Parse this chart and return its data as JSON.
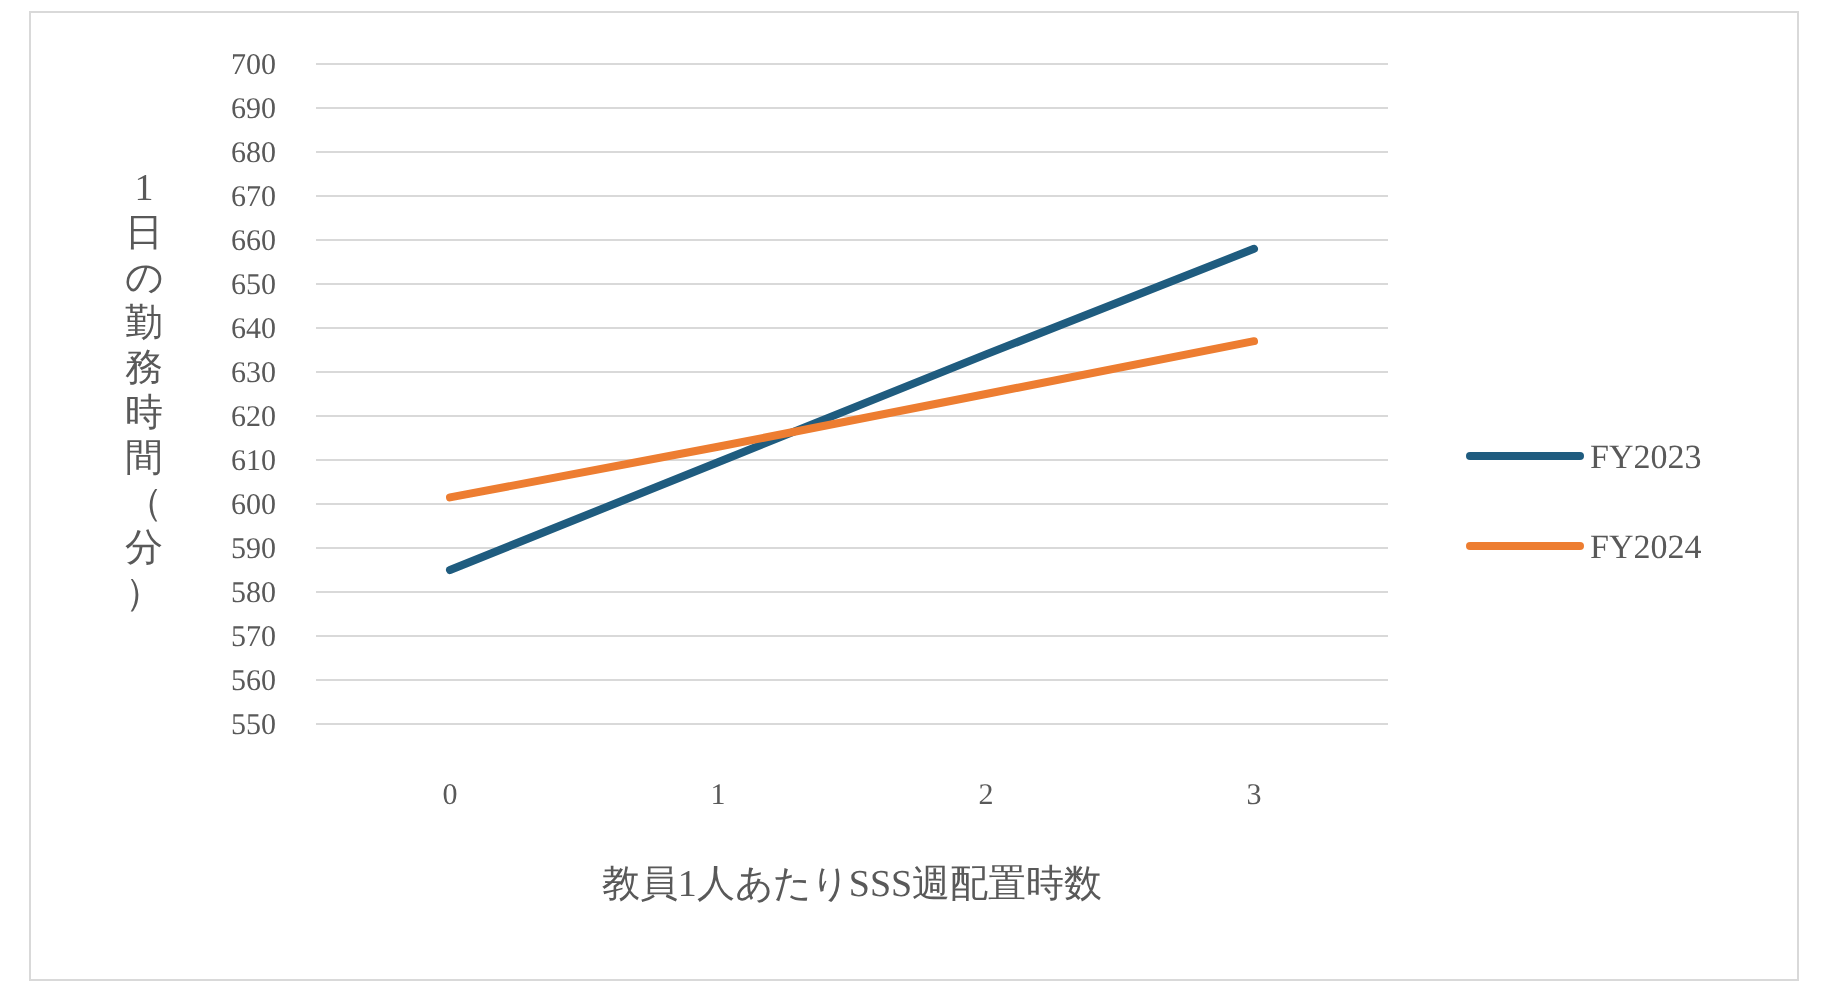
{
  "chart_data": {
    "type": "line",
    "xlabel": "教員1人あたりSSS週配置時数",
    "ylabel": "1日の勤務時間（分）",
    "categories": [
      "0",
      "1",
      "2",
      "3"
    ],
    "series": [
      {
        "name": "FY2023",
        "color": "#1f5c7f",
        "values": [
          585,
          609.5,
          634,
          658
        ]
      },
      {
        "name": "FY2024",
        "color": "#ed7d31",
        "values": [
          601.5,
          613,
          625,
          637
        ]
      }
    ],
    "ylim": [
      550,
      700
    ],
    "yticks": [
      550,
      560,
      570,
      580,
      590,
      600,
      610,
      620,
      630,
      640,
      650,
      660,
      670,
      680,
      690,
      700
    ],
    "grid": "y",
    "legend": "right",
    "marker": "none",
    "line_style": "solid"
  }
}
